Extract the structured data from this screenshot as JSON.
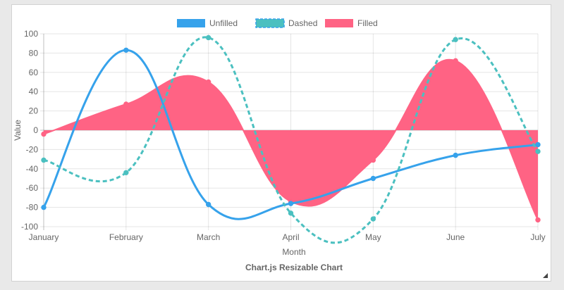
{
  "chart_data": {
    "type": "line",
    "title": "Chart.js Resizable Chart",
    "xlabel": "Month",
    "ylabel": "Value",
    "categories": [
      "January",
      "February",
      "March",
      "April",
      "May",
      "June",
      "July"
    ],
    "ylim": [
      -100,
      100
    ],
    "yticks": [
      -100,
      -80,
      -60,
      -40,
      -20,
      0,
      20,
      40,
      60,
      80,
      100
    ],
    "grid": true,
    "legend_position": "top",
    "series": [
      {
        "name": "Unfilled",
        "values": [
          -80,
          83,
          -77,
          -76,
          -50,
          -26,
          -15
        ],
        "color": "#36a2eb",
        "style": "solid",
        "fill": false
      },
      {
        "name": "Dashed",
        "values": [
          -31,
          -44,
          96,
          -86,
          -92,
          94,
          -22
        ],
        "color": "#4bc0c0",
        "style": "dashed",
        "fill": false
      },
      {
        "name": "Filled",
        "values": [
          -4,
          27,
          50,
          -74,
          -31,
          72,
          -93
        ],
        "color": "#ff6384",
        "style": "solid",
        "fill": true
      }
    ]
  }
}
